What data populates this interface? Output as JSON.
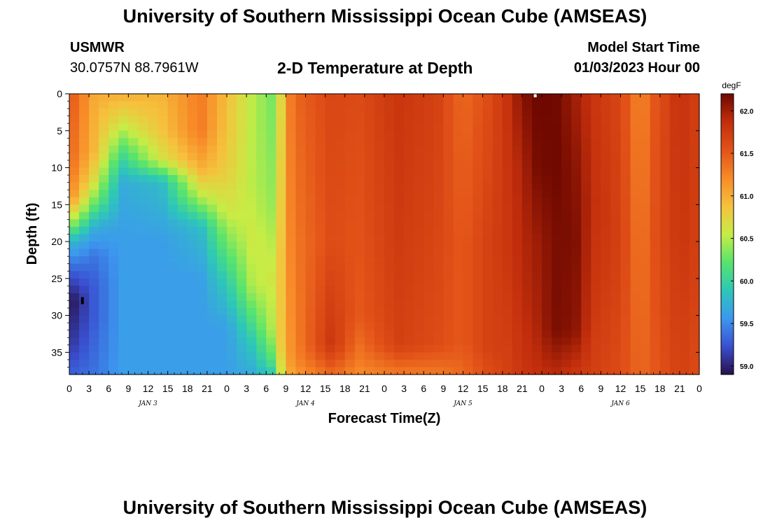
{
  "header": {
    "title": "University of Southern Mississippi Ocean Cube (AMSEAS)",
    "station_id": "USMWR",
    "coordinates": "30.0757N  88.7961W",
    "plot_title": "2-D Temperature at Depth",
    "model_start_label": "Model Start Time",
    "model_start_value": "01/03/2023 Hour 00"
  },
  "footer": {
    "title": "University of Southern Mississippi Ocean Cube (AMSEAS)"
  },
  "chart_data": {
    "type": "heatmap",
    "title": "2-D Temperature at Depth",
    "xlabel": "Forecast Time(Z)",
    "ylabel": "Depth (ft)",
    "x_unit": "hours since model start",
    "x_range": [
      0,
      96
    ],
    "x_tick_labels": [
      "0",
      "3",
      "6",
      "9",
      "12",
      "15",
      "18",
      "21",
      "0",
      "3",
      "6",
      "9",
      "12",
      "15",
      "18",
      "21",
      "0",
      "3",
      "6",
      "9",
      "12",
      "15",
      "18",
      "21",
      "0",
      "3",
      "6",
      "9",
      "12",
      "15",
      "18",
      "21",
      "0"
    ],
    "date_labels": [
      {
        "label": "JAN 3",
        "hour": 12
      },
      {
        "label": "JAN 4",
        "hour": 36
      },
      {
        "label": "JAN 5",
        "hour": 60
      },
      {
        "label": "JAN 6",
        "hour": 84
      }
    ],
    "y_range": [
      0,
      38
    ],
    "y_ticks": [
      0,
      5,
      10,
      15,
      20,
      25,
      30,
      35
    ],
    "colorbar": {
      "unit": "degF",
      "range": [
        58.9,
        62.2
      ],
      "ticks": [
        59.0,
        59.5,
        60.0,
        60.5,
        61.0,
        61.5,
        62.0
      ],
      "colors": [
        "#28104a",
        "#3a4fd0",
        "#3c98ef",
        "#2dc7b8",
        "#58e46c",
        "#c7ec45",
        "#f6c13d",
        "#f88a28",
        "#e25218",
        "#c22e0c",
        "#6e0800"
      ]
    },
    "grid": false,
    "grid_resolution": {
      "hour_step": 1.5,
      "depth_step": 1
    },
    "field": {
      "description": "temperature (degF) at selected hours; rows indexed by depth 0..38 ft via profile keypoints",
      "profiles": [
        {
          "hour": 0,
          "depth": [
            0,
            10,
            14,
            17,
            20,
            24,
            28,
            34,
            38
          ],
          "temp": [
            61.55,
            61.4,
            61.2,
            60.6,
            59.8,
            59.3,
            58.9,
            59.1,
            59.3
          ]
        },
        {
          "hour": 4,
          "depth": [
            0,
            8,
            12,
            15,
            18,
            22,
            26,
            30,
            38
          ],
          "temp": [
            61.0,
            60.9,
            60.6,
            60.2,
            59.7,
            59.4,
            59.3,
            59.3,
            59.4
          ]
        },
        {
          "hour": 8,
          "depth": [
            0,
            4,
            8,
            12,
            20,
            30,
            38
          ],
          "temp": [
            61.0,
            60.6,
            60.1,
            59.7,
            59.6,
            59.6,
            59.6
          ]
        },
        {
          "hour": 14,
          "depth": [
            0,
            5,
            9,
            12,
            20,
            30,
            38
          ],
          "temp": [
            60.95,
            60.85,
            60.6,
            59.8,
            59.6,
            59.6,
            59.6
          ]
        },
        {
          "hour": 20,
          "depth": [
            0,
            5,
            10,
            14,
            18,
            25,
            32,
            38
          ],
          "temp": [
            61.3,
            61.3,
            61.0,
            60.5,
            59.8,
            59.6,
            59.6,
            59.6
          ]
        },
        {
          "hour": 24,
          "depth": [
            0,
            10,
            16,
            20,
            26,
            32,
            38
          ],
          "temp": [
            60.9,
            60.8,
            60.6,
            60.3,
            59.9,
            59.6,
            59.6
          ]
        },
        {
          "hour": 28,
          "depth": [
            0,
            12,
            20,
            26,
            30,
            34,
            38
          ],
          "temp": [
            60.5,
            60.5,
            60.6,
            60.5,
            60.2,
            59.9,
            59.7
          ]
        },
        {
          "hour": 31,
          "depth": [
            0,
            15,
            25,
            32,
            36,
            38
          ],
          "temp": [
            60.3,
            60.4,
            60.6,
            60.5,
            60.2,
            59.9
          ]
        },
        {
          "hour": 32.5,
          "depth": [
            0,
            20,
            34,
            38
          ],
          "temp": [
            60.8,
            60.9,
            60.9,
            60.7
          ]
        },
        {
          "hour": 34,
          "depth": [
            0,
            20,
            36,
            38
          ],
          "temp": [
            61.4,
            61.3,
            61.2,
            61.1
          ]
        },
        {
          "hour": 40,
          "depth": [
            0,
            20,
            34,
            38
          ],
          "temp": [
            61.65,
            61.6,
            61.8,
            61.4
          ]
        },
        {
          "hour": 44,
          "depth": [
            0,
            15,
            30,
            36,
            38
          ],
          "temp": [
            61.6,
            61.55,
            61.5,
            61.3,
            61.2
          ]
        },
        {
          "hour": 50,
          "depth": [
            0,
            20,
            34,
            38
          ],
          "temp": [
            61.8,
            61.75,
            61.7,
            61.3
          ]
        },
        {
          "hour": 56,
          "depth": [
            0,
            20,
            34,
            38
          ],
          "temp": [
            61.7,
            61.65,
            61.6,
            61.3
          ]
        },
        {
          "hour": 60,
          "depth": [
            0,
            20,
            34,
            38
          ],
          "temp": [
            61.4,
            61.5,
            61.5,
            61.4
          ]
        },
        {
          "hour": 64,
          "depth": [
            0,
            20,
            34,
            38
          ],
          "temp": [
            61.6,
            61.7,
            61.7,
            61.6
          ]
        },
        {
          "hour": 67,
          "depth": [
            0,
            20,
            38
          ],
          "temp": [
            61.85,
            61.8,
            61.7
          ]
        },
        {
          "hour": 69,
          "depth": [
            0,
            10,
            25,
            38
          ],
          "temp": [
            62.1,
            61.95,
            61.9,
            61.8
          ]
        },
        {
          "hour": 71,
          "depth": [
            0,
            10,
            20,
            30,
            38
          ],
          "temp": [
            62.2,
            62.15,
            62.0,
            61.95,
            61.85
          ]
        },
        {
          "hour": 74,
          "depth": [
            0,
            10,
            20,
            32,
            38
          ],
          "temp": [
            62.2,
            62.2,
            62.15,
            62.15,
            61.9
          ]
        },
        {
          "hour": 77,
          "depth": [
            0,
            10,
            20,
            32,
            38
          ],
          "temp": [
            62.0,
            62.1,
            62.15,
            62.1,
            61.8
          ]
        },
        {
          "hour": 80,
          "depth": [
            0,
            15,
            25,
            38
          ],
          "temp": [
            61.8,
            61.85,
            61.8,
            61.7
          ]
        },
        {
          "hour": 84,
          "depth": [
            0,
            20,
            38
          ],
          "temp": [
            61.65,
            61.7,
            61.6
          ]
        },
        {
          "hour": 87,
          "depth": [
            0,
            20,
            38
          ],
          "temp": [
            61.2,
            61.3,
            61.4
          ]
        },
        {
          "hour": 89,
          "depth": [
            0,
            20,
            38
          ],
          "temp": [
            61.5,
            61.55,
            61.5
          ]
        },
        {
          "hour": 93,
          "depth": [
            0,
            20,
            38
          ],
          "temp": [
            61.85,
            61.8,
            61.7
          ]
        },
        {
          "hour": 96,
          "depth": [
            0,
            20,
            38
          ],
          "temp": [
            61.7,
            61.7,
            61.6
          ]
        }
      ]
    },
    "markers": [
      {
        "hour": 71,
        "depth": 0,
        "color": "#ffffff"
      },
      {
        "hour": 2,
        "depth": 28,
        "color": "#000000"
      }
    ]
  }
}
